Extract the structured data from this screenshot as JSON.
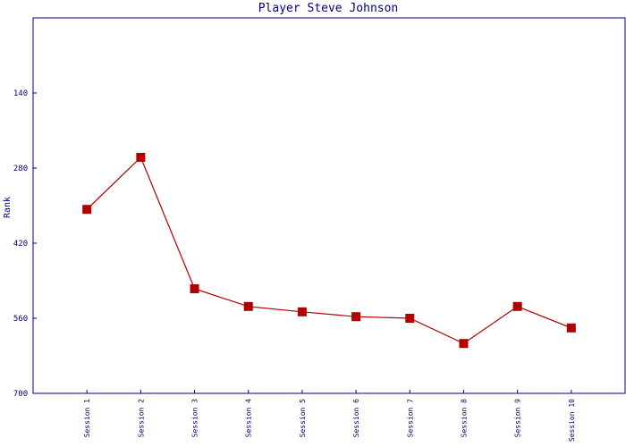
{
  "chart_data": {
    "type": "line",
    "title": "Player Steve Johnson",
    "y_label": "Rank",
    "categories": [
      "Session 1",
      "Session 2",
      "Session 3",
      "Session 4",
      "Session 5",
      "Session 6",
      "Session 7",
      "Session 8",
      "Session 9",
      "Session 10"
    ],
    "series": [
      {
        "name": "Rank",
        "color": "#b00000",
        "values": [
          357,
          260,
          505,
          538,
          548,
          557,
          560,
          607,
          538,
          578
        ]
      }
    ],
    "ylim": [
      0,
      700
    ],
    "yticks": [
      140,
      280,
      420,
      560,
      700
    ],
    "y_reversed": true,
    "grid": false
  }
}
